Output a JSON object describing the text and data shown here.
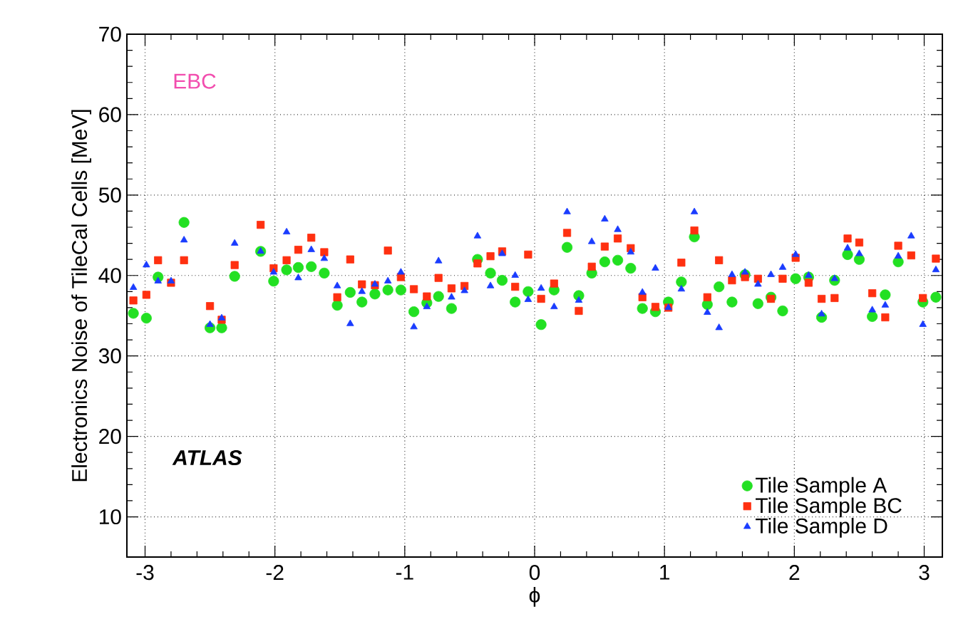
{
  "chart_data": {
    "type": "scatter",
    "xlabel": "ϕ",
    "ylabel": "Electronics Noise of TileCal Cells [MeV]",
    "annotations": [
      "EBC",
      "ATLAS"
    ],
    "x": [
      -3.09,
      -2.99,
      -2.9,
      -2.8,
      -2.7,
      -2.6,
      -2.5,
      -2.41,
      -2.31,
      -2.21,
      -2.11,
      -2.01,
      -1.91,
      -1.82,
      -1.72,
      -1.62,
      -1.52,
      -1.42,
      -1.33,
      -1.23,
      -1.13,
      -1.03,
      -0.93,
      -0.83,
      -0.74,
      -0.64,
      -0.54,
      -0.44,
      -0.34,
      -0.25,
      -0.15,
      -0.05,
      0.05,
      0.15,
      0.25,
      0.34,
      0.44,
      0.54,
      0.64,
      0.74,
      0.83,
      0.93,
      1.03,
      1.13,
      1.23,
      1.33,
      1.42,
      1.52,
      1.62,
      1.72,
      1.82,
      1.91,
      2.01,
      2.11,
      2.21,
      2.31,
      2.41,
      2.5,
      2.6,
      2.7,
      2.8,
      2.9,
      2.99,
      3.09
    ],
    "series": [
      {
        "name": "Tile Sample A",
        "color": "#22e022",
        "marker": "circle",
        "values": [
          35.3,
          34.7,
          39.8,
          null,
          46.6,
          null,
          33.5,
          33.5,
          39.9,
          null,
          43.0,
          39.3,
          40.7,
          41.0,
          41.1,
          40.3,
          36.3,
          37.9,
          36.7,
          37.7,
          38.2,
          38.2,
          35.5,
          36.6,
          37.4,
          35.9,
          null,
          42.0,
          40.3,
          39.4,
          36.7,
          38.0,
          33.9,
          38.2,
          43.5,
          37.5,
          40.3,
          41.7,
          41.9,
          40.9,
          35.9,
          35.5,
          36.7,
          39.2,
          44.8,
          36.4,
          38.6,
          36.7,
          40.1,
          36.5,
          37.3,
          35.6,
          39.6,
          39.8,
          34.8,
          39.4,
          42.6,
          42.0,
          34.9,
          37.6,
          41.7,
          null,
          36.7,
          37.3
        ]
      },
      {
        "name": "Tile Sample BC",
        "color": "#ff3010",
        "marker": "square",
        "values": [
          36.9,
          37.6,
          41.9,
          39.1,
          41.9,
          null,
          36.2,
          34.5,
          41.3,
          null,
          46.3,
          40.9,
          41.9,
          43.2,
          44.7,
          42.9,
          37.3,
          42.0,
          38.9,
          38.8,
          43.1,
          39.8,
          38.3,
          37.4,
          39.7,
          38.4,
          38.7,
          41.5,
          42.4,
          43.0,
          38.6,
          42.6,
          37.1,
          39.0,
          45.3,
          35.6,
          41.1,
          43.6,
          44.6,
          43.4,
          37.3,
          36.1,
          36.0,
          41.6,
          45.6,
          37.3,
          41.9,
          39.4,
          39.8,
          39.6,
          37.1,
          39.6,
          42.2,
          39.1,
          37.1,
          37.2,
          44.6,
          44.1,
          37.8,
          34.8,
          43.7,
          42.5,
          37.2,
          42.1
        ]
      },
      {
        "name": "Tile Sample D",
        "color": "#1a3cff",
        "marker": "triangle",
        "values": [
          38.5,
          41.3,
          39.3,
          39.3,
          44.4,
          null,
          33.9,
          34.7,
          44.0,
          null,
          43.0,
          40.4,
          45.4,
          39.7,
          43.2,
          42.1,
          38.7,
          34.0,
          38.0,
          38.9,
          39.3,
          40.4,
          33.6,
          36.1,
          41.8,
          37.3,
          38.1,
          44.9,
          38.7,
          42.7,
          40.0,
          37.0,
          38.4,
          36.1,
          47.9,
          36.9,
          44.2,
          47.0,
          45.7,
          42.9,
          37.9,
          40.9,
          36.0,
          38.3,
          47.9,
          35.4,
          33.5,
          40.1,
          40.4,
          38.9,
          40.1,
          41.0,
          42.6,
          40.0,
          35.2,
          39.6,
          43.4,
          42.7,
          35.7,
          36.3,
          42.4,
          44.9,
          33.9,
          40.7
        ]
      }
    ],
    "xlim": [
      -3.14,
      3.14
    ],
    "ylim": [
      5,
      70
    ],
    "xticks": [
      -3,
      -2,
      -1,
      0,
      1,
      2,
      3
    ],
    "yticks": [
      10,
      20,
      30,
      40,
      50,
      60,
      70
    ],
    "grid": true,
    "legend": "bottom right"
  }
}
